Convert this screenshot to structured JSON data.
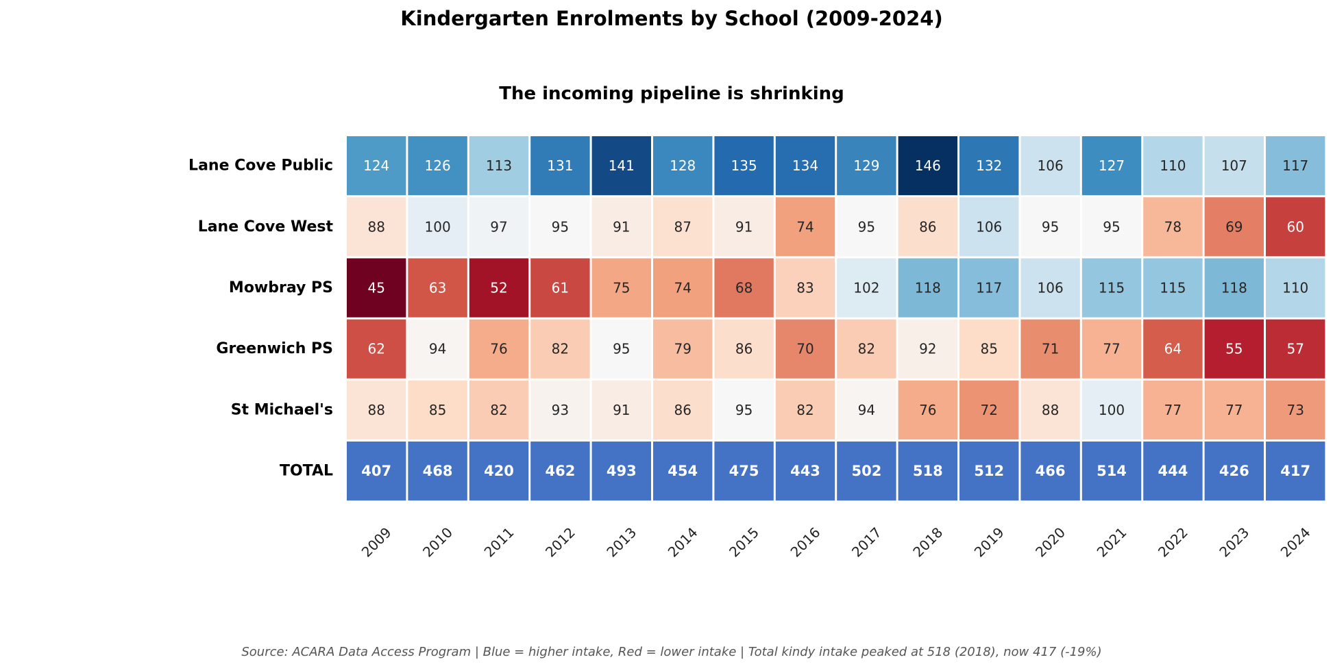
{
  "chart_data": {
    "type": "heatmap",
    "title": "Kindergarten Enrolments by School (2009-2024)",
    "subtitle": "The incoming pipeline is shrinking",
    "columns": [
      "2009",
      "2010",
      "2011",
      "2012",
      "2013",
      "2014",
      "2015",
      "2016",
      "2017",
      "2018",
      "2019",
      "2020",
      "2021",
      "2022",
      "2023",
      "2024"
    ],
    "rows": [
      "Lane Cove Public",
      "Lane Cove West",
      "Mowbray PS",
      "Greenwich PS",
      "St Michael's"
    ],
    "values": [
      [
        124,
        126,
        113,
        131,
        141,
        128,
        135,
        134,
        129,
        146,
        132,
        106,
        127,
        110,
        107,
        117
      ],
      [
        88,
        100,
        97,
        95,
        91,
        87,
        91,
        74,
        95,
        86,
        106,
        95,
        95,
        78,
        69,
        60
      ],
      [
        45,
        63,
        52,
        61,
        75,
        74,
        68,
        83,
        102,
        118,
        117,
        106,
        115,
        115,
        118,
        110
      ],
      [
        62,
        94,
        76,
        82,
        95,
        79,
        86,
        70,
        82,
        92,
        85,
        71,
        77,
        64,
        55,
        57
      ],
      [
        88,
        85,
        82,
        93,
        91,
        86,
        95,
        82,
        94,
        76,
        72,
        88,
        100,
        77,
        77,
        73
      ]
    ],
    "total_row": {
      "label": "TOTAL",
      "values": [
        407,
        468,
        420,
        462,
        493,
        454,
        475,
        443,
        502,
        518,
        512,
        466,
        514,
        444,
        426,
        417
      ],
      "color": "#4472c4"
    },
    "colormap": "RdBu",
    "color_center": 95,
    "source_note": "Source: ACARA Data Access Program  |  Blue = higher intake, Red = lower intake  |  Total kindy intake peaked at 518 (2018), now 417 (-19%)"
  }
}
